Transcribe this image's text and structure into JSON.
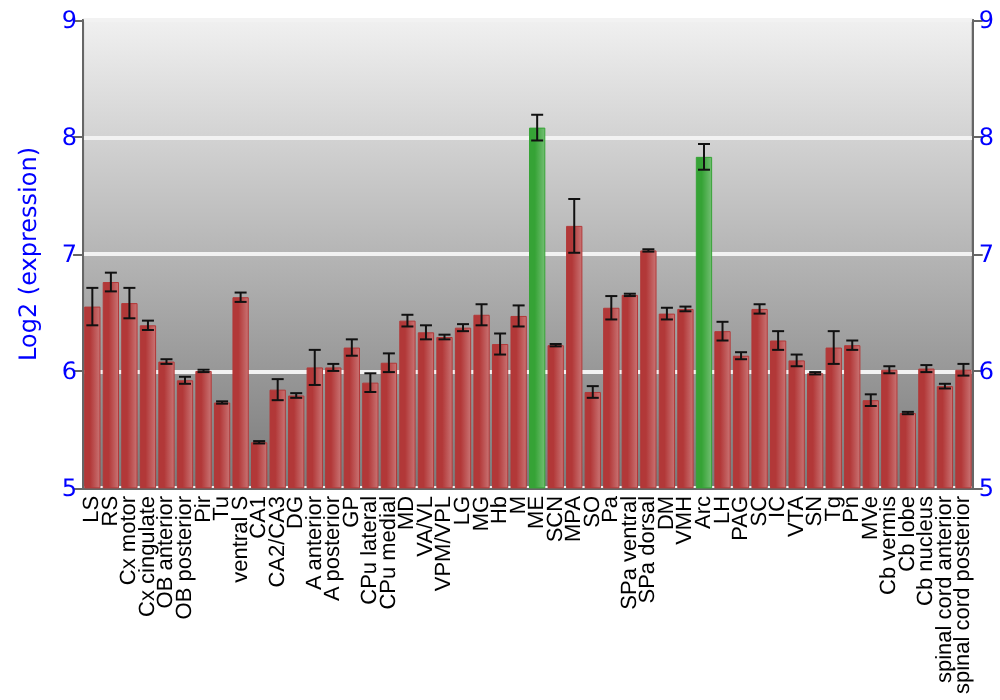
{
  "chart_data": {
    "type": "bar",
    "ylabel": "Log2 (expression)",
    "categories": [
      "LS",
      "RS",
      "Cx motor",
      "Cx cingulate",
      "OB anterior",
      "OB posterior",
      "Pir",
      "Tu",
      "ventral S",
      "CA1",
      "CA2/CA3",
      "DG",
      "A anterior",
      "A posterior",
      "GP",
      "CPu lateral",
      "CPu medial",
      "MD",
      "VA/VL",
      "VPM/VPL",
      "LG",
      "MG",
      "Hb",
      "M",
      "ME",
      "SCN",
      "MPA",
      "SO",
      "Pa",
      "SPa ventral",
      "SPa dorsal",
      "DM",
      "VMH",
      "Arc",
      "LH",
      "PAG",
      "SC",
      "IC",
      "VTA",
      "SN",
      "Tg",
      "Pn",
      "MVe",
      "Cb vermis",
      "Cb lobe",
      "Cb nucleus",
      "spinal cord anterior",
      "spinal cord posterior"
    ],
    "values": [
      6.55,
      6.76,
      6.58,
      6.39,
      6.08,
      5.92,
      6.0,
      5.73,
      6.63,
      5.39,
      5.84,
      5.79,
      6.03,
      6.03,
      6.2,
      5.9,
      6.07,
      6.43,
      6.33,
      6.29,
      6.37,
      6.48,
      6.23,
      6.47,
      8.08,
      6.22,
      7.24,
      5.82,
      6.54,
      6.65,
      7.03,
      6.49,
      6.53,
      7.83,
      6.34,
      6.13,
      6.53,
      6.26,
      6.09,
      5.98,
      6.2,
      6.22,
      5.75,
      6.01,
      5.64,
      6.02,
      5.87,
      6.01
    ],
    "errors": [
      0.16,
      0.08,
      0.13,
      0.04,
      0.02,
      0.03,
      0.01,
      0.01,
      0.04,
      0.01,
      0.09,
      0.02,
      0.15,
      0.03,
      0.07,
      0.08,
      0.08,
      0.05,
      0.06,
      0.02,
      0.03,
      0.09,
      0.09,
      0.09,
      0.11,
      0.01,
      0.23,
      0.05,
      0.1,
      0.01,
      0.01,
      0.05,
      0.02,
      0.11,
      0.08,
      0.03,
      0.04,
      0.08,
      0.05,
      0.01,
      0.14,
      0.04,
      0.05,
      0.03,
      0.01,
      0.03,
      0.02,
      0.05
    ],
    "colors": [
      "#b23838",
      "#b23838",
      "#b23838",
      "#b23838",
      "#b23838",
      "#b23838",
      "#b23838",
      "#b23838",
      "#b23838",
      "#b23838",
      "#b23838",
      "#b23838",
      "#b23838",
      "#b23838",
      "#b23838",
      "#b23838",
      "#b23838",
      "#b23838",
      "#b23838",
      "#b23838",
      "#b23838",
      "#b23838",
      "#b23838",
      "#b23838",
      "#36a336",
      "#b23838",
      "#b23838",
      "#b23838",
      "#b23838",
      "#b23838",
      "#b23838",
      "#b23838",
      "#b23838",
      "#36a336",
      "#b23838",
      "#b23838",
      "#b23838",
      "#b23838",
      "#b23838",
      "#b23838",
      "#b23838",
      "#b23838",
      "#b23838",
      "#b23838",
      "#b23838",
      "#b23838",
      "#b23838",
      "#b23838"
    ],
    "ylim": [
      5,
      9
    ],
    "yticks": [
      5,
      6,
      7,
      8,
      9
    ],
    "y2lim": [
      5,
      9
    ],
    "y2ticks": [
      5,
      6,
      7,
      8,
      9
    ],
    "grid": "y"
  }
}
